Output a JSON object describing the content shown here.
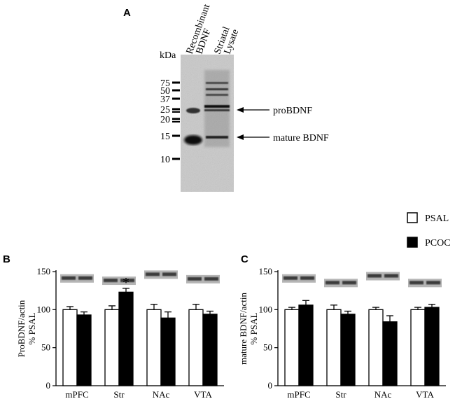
{
  "panels": {
    "a": "A",
    "b": "B",
    "c": "C"
  },
  "blot": {
    "kda_label": "kDa",
    "markers": [
      "75",
      "50",
      "37",
      "25",
      "20",
      "15",
      "10"
    ],
    "lane_labels": [
      "Recombinant",
      "BDNF",
      "Striatal",
      "Lysate"
    ],
    "annotations": [
      "proBDNF",
      "mature BDNF"
    ]
  },
  "legend": {
    "items": [
      {
        "label": "PSAL",
        "fill": "#ffffff"
      },
      {
        "label": "PCOC",
        "fill": "#000000"
      }
    ]
  },
  "chart_data": [
    {
      "type": "bar",
      "panel": "B",
      "categories": [
        "mPFC",
        "Str",
        "NAc",
        "VTA"
      ],
      "series": [
        {
          "name": "PSAL",
          "values": [
            100,
            100,
            100,
            100
          ],
          "errors": [
            4,
            5,
            7,
            7
          ]
        },
        {
          "name": "PCOC",
          "values": [
            93,
            123,
            89,
            94
          ],
          "errors": [
            4,
            5,
            8,
            4
          ]
        }
      ],
      "ylabel_line1": "ProBDNF/actin",
      "ylabel_line2": "% PSAL",
      "ylim": [
        0,
        150
      ],
      "yticks": [
        "0",
        "50",
        "100",
        "150"
      ],
      "annotation": "*",
      "annotation_category": "Str"
    },
    {
      "type": "bar",
      "panel": "C",
      "categories": [
        "mPFC",
        "Str",
        "NAc",
        "VTA"
      ],
      "series": [
        {
          "name": "PSAL",
          "values": [
            100,
            100,
            100,
            100
          ],
          "errors": [
            3,
            6,
            3,
            3
          ]
        },
        {
          "name": "PCOC",
          "values": [
            106,
            94,
            84,
            103
          ],
          "errors": [
            6,
            4,
            8,
            4
          ]
        }
      ],
      "ylabel_line1": "mature BDNF/actin",
      "ylabel_line2": "% PSAL",
      "ylim": [
        0,
        150
      ],
      "yticks": [
        "0",
        "50",
        "100",
        "150"
      ]
    }
  ]
}
